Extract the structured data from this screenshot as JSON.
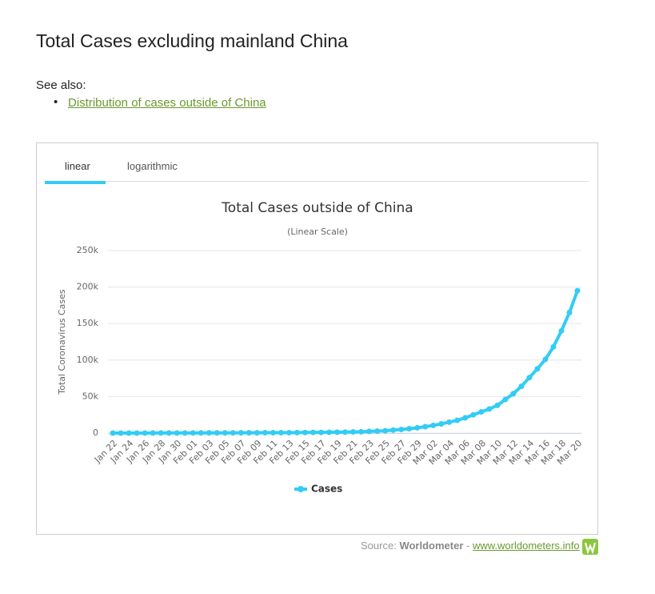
{
  "header": {
    "title": "Total Cases excluding mainland China",
    "see_also": "See also:",
    "link": "Distribution of cases outside of China"
  },
  "tabs": [
    "linear",
    "logarithmic"
  ],
  "chart_data": {
    "type": "line",
    "title": "Total Cases outside of China",
    "subtitle": "(Linear Scale)",
    "ylabel": "Total Coronavirus Cases",
    "categories": [
      "Jan 22",
      null,
      "Jan 24",
      null,
      "Jan 26",
      null,
      "Jan 28",
      null,
      "Jan 30",
      null,
      "Feb 01",
      null,
      "Feb 03",
      null,
      "Feb 05",
      null,
      "Feb 07",
      null,
      "Feb 09",
      null,
      "Feb 11",
      null,
      "Feb 13",
      null,
      "Feb 15",
      null,
      "Feb 17",
      null,
      "Feb 19",
      null,
      "Feb 21",
      null,
      "Feb 23",
      null,
      "Feb 25",
      null,
      "Feb 27",
      null,
      "Feb 29",
      null,
      "Mar 02",
      null,
      "Mar 04",
      null,
      "Mar 06",
      null,
      "Mar 08",
      null,
      "Mar 10",
      null,
      "Mar 12",
      null,
      "Mar 14",
      null,
      "Mar 16",
      null,
      "Mar 18",
      null,
      "Mar 20"
    ],
    "series": [
      {
        "name": "Cases",
        "color": "#33ccf5",
        "values": [
          9,
          15,
          30,
          40,
          60,
          80,
          90,
          110,
          130,
          160,
          180,
          210,
          250,
          280,
          300,
          330,
          370,
          400,
          440,
          480,
          500,
          520,
          600,
          680,
          800,
          900,
          1000,
          1100,
          1200,
          1400,
          1600,
          1800,
          2300,
          2700,
          3200,
          4100,
          4900,
          6000,
          7200,
          8800,
          10500,
          12600,
          15000,
          17500,
          21000,
          25000,
          29000,
          33000,
          38000,
          46000,
          54000,
          64000,
          76000,
          88000,
          101000,
          118000,
          140000,
          165000,
          195000
        ]
      }
    ],
    "ylim": [
      0,
      250000
    ],
    "yticks": [
      0,
      {
        "value": 50000,
        "label": "50k"
      },
      {
        "value": 100000,
        "label": "100k"
      },
      {
        "value": 150000,
        "label": "150k"
      },
      {
        "value": 200000,
        "label": "200k"
      },
      {
        "value": 250000,
        "label": "250k"
      }
    ],
    "grid": true
  },
  "source": {
    "prefix": "Source:",
    "name": "Worldometer",
    "sep": "-",
    "url": "www.worldometers.info"
  }
}
